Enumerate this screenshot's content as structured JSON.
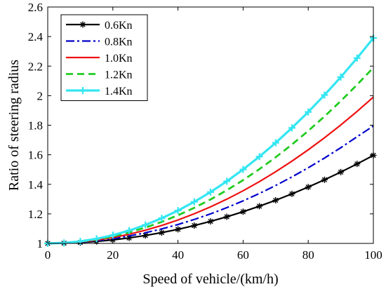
{
  "chart_data": {
    "type": "line",
    "xlabel": "Speed of vehicle/(km/h)",
    "ylabel": "Ratio of steering radius",
    "xlim": [
      0,
      100
    ],
    "ylim": [
      1,
      2.6
    ],
    "xticks": [
      "0",
      "20",
      "40",
      "60",
      "80",
      "100"
    ],
    "yticks": [
      "1",
      "1.2",
      "1.4",
      "1.6",
      "1.8",
      "2",
      "2.2",
      "2.4",
      "2.6"
    ],
    "grid": false,
    "legend_position": "top-left",
    "x": [
      0,
      5,
      10,
      15,
      20,
      25,
      30,
      35,
      40,
      45,
      50,
      55,
      60,
      65,
      70,
      75,
      80,
      85,
      90,
      95,
      100
    ],
    "series": [
      {
        "name": "0.6Kn",
        "color": "#000000",
        "line_style": "solid",
        "marker": "asterisk",
        "values": [
          1.0,
          1.0015,
          1.006,
          1.0134,
          1.0238,
          1.0372,
          1.0536,
          1.073,
          1.0954,
          1.1207,
          1.149,
          1.1803,
          1.2146,
          1.2518,
          1.292,
          1.3353,
          1.3815,
          1.4307,
          1.4828,
          1.538,
          1.596
        ]
      },
      {
        "name": "0.8Kn",
        "color": "#0000cc",
        "line_style": "dashdot",
        "marker": "none",
        "values": [
          1.0,
          1.002,
          1.008,
          1.018,
          1.032,
          1.05,
          1.072,
          1.098,
          1.128,
          1.162,
          1.2,
          1.242,
          1.288,
          1.338,
          1.392,
          1.45,
          1.512,
          1.578,
          1.648,
          1.722,
          1.795
        ]
      },
      {
        "name": "1.0Kn",
        "color": "#ee1111",
        "line_style": "solid",
        "marker": "none",
        "values": [
          1.0,
          1.0025,
          1.0099,
          1.0223,
          1.0396,
          1.0619,
          1.0891,
          1.1213,
          1.1584,
          1.2005,
          1.2475,
          1.2995,
          1.3564,
          1.4183,
          1.4851,
          1.5569,
          1.6336,
          1.7153,
          1.8019,
          1.8935,
          1.99
        ]
      },
      {
        "name": "1.2Kn",
        "color": "#22cc22",
        "line_style": "dashed",
        "marker": "none",
        "values": [
          1.0,
          1.003,
          1.0119,
          1.0268,
          1.0476,
          1.0744,
          1.1071,
          1.1458,
          1.1904,
          1.241,
          1.2975,
          1.36,
          1.4284,
          1.5028,
          1.5831,
          1.6694,
          1.7616,
          1.8598,
          1.9639,
          2.074,
          2.19
        ]
      },
      {
        "name": "1.4Kn",
        "color": "#33e6f2",
        "line_style": "solid",
        "marker": "plus",
        "values": [
          1.0,
          1.0035,
          1.0139,
          1.0313,
          1.0556,
          1.0869,
          1.1251,
          1.1703,
          1.2224,
          1.2815,
          1.3475,
          1.4205,
          1.5004,
          1.5873,
          1.6811,
          1.7819,
          1.8896,
          2.0043,
          2.1259,
          2.2545,
          2.39
        ]
      }
    ]
  }
}
